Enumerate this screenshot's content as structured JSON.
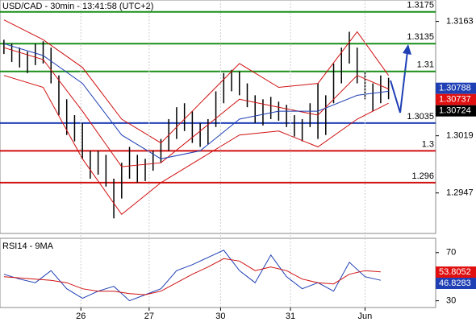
{
  "chart_data": [
    {
      "type": "hilo",
      "title": "USD/CAD - 30min - 13:41:58 (UTC+2)",
      "x": [
        0,
        1,
        2,
        3,
        4,
        5,
        6,
        7,
        8,
        9,
        10,
        11,
        12,
        13,
        14,
        15,
        16,
        17,
        18,
        19,
        20,
        21,
        22,
        23,
        24,
        25,
        26,
        27,
        28,
        29,
        30,
        31,
        32,
        33,
        34,
        35,
        36,
        37,
        38,
        39,
        40,
        41,
        42,
        43,
        44,
        45,
        46,
        47,
        48,
        49
      ],
      "high": [
        1.314,
        1.3135,
        1.313,
        1.3125,
        1.3135,
        1.3138,
        1.313,
        1.3095,
        1.3065,
        1.3045,
        1.3035,
        1.3,
        1.3,
        1.2995,
        1.2965,
        1.2985,
        1.3005,
        1.2995,
        1.299,
        1.3,
        1.3015,
        1.304,
        1.3055,
        1.306,
        1.305,
        1.3035,
        1.304,
        1.3075,
        1.3098,
        1.3102,
        1.31,
        1.3085,
        1.307,
        1.3065,
        1.3068,
        1.3062,
        1.3058,
        1.3045,
        1.304,
        1.306,
        1.3085,
        1.307,
        1.311,
        1.313,
        1.315,
        1.313,
        1.31,
        1.3085,
        1.3095,
        1.3092
      ],
      "low": [
        1.3122,
        1.3112,
        1.3105,
        1.3098,
        1.3108,
        1.311,
        1.3085,
        1.3045,
        1.302,
        1.3012,
        1.299,
        1.2965,
        1.297,
        1.2955,
        1.2915,
        1.294,
        1.2965,
        1.296,
        1.2962,
        1.2975,
        1.2985,
        1.3,
        1.3015,
        1.3025,
        1.301,
        1.3005,
        1.3008,
        1.303,
        1.306,
        1.3075,
        1.307,
        1.3055,
        1.3035,
        1.3032,
        1.304,
        1.3038,
        1.303,
        1.3018,
        1.3012,
        1.303,
        1.3015,
        1.302,
        1.306,
        1.3085,
        1.311,
        1.3085,
        1.3065,
        1.305,
        1.306,
        1.3065
      ],
      "color": "#000000",
      "series": [
        {
          "color": "#d01010",
          "x": [
            0,
            5,
            10,
            15,
            20,
            25,
            30,
            35,
            40,
            45,
            49
          ],
          "values": [
            1.3165,
            1.314,
            1.3105,
            1.304,
            1.301,
            1.306,
            1.311,
            1.308,
            1.3085,
            1.315,
            1.3095
          ]
        },
        {
          "color": "#d01010",
          "x": [
            0,
            5,
            10,
            15,
            20,
            25,
            30,
            35,
            40,
            45,
            49
          ],
          "values": [
            1.3095,
            1.308,
            1.299,
            1.292,
            1.296,
            1.299,
            1.302,
            1.3025,
            1.3005,
            1.304,
            1.306
          ]
        },
        {
          "color": "#d01010",
          "x": [
            0,
            5,
            10,
            15,
            20,
            25,
            30,
            35,
            40,
            45,
            49
          ],
          "values": [
            1.313,
            1.3115,
            1.305,
            1.298,
            1.2985,
            1.3025,
            1.3065,
            1.3055,
            1.3045,
            1.3095,
            1.3078
          ]
        },
        {
          "color": "#1f3fb5",
          "x": [
            0,
            5,
            10,
            15,
            20,
            25,
            30,
            35,
            40,
            45,
            49
          ],
          "values": [
            1.3135,
            1.312,
            1.3085,
            1.302,
            1.299,
            1.3,
            1.304,
            1.305,
            1.305,
            1.307,
            1.3075
          ]
        }
      ],
      "levels": [
        {
          "value": 1.3175,
          "color": "#1a8f1a"
        },
        {
          "value": 1.3135,
          "color": "#1a8f1a"
        },
        {
          "value": 1.31,
          "color": "#1a8f1a"
        },
        {
          "value": 1.3035,
          "color": "#1f3fb5"
        },
        {
          "value": 1.3,
          "color": "#d01010"
        },
        {
          "value": 1.296,
          "color": "#d01010"
        }
      ],
      "price_labels": [
        {
          "value": 1.30788,
          "color": "#1f3fb5"
        },
        {
          "value": 1.30737,
          "color": "#e01010"
        },
        {
          "value": 1.30724,
          "color": "#000000"
        }
      ],
      "xlim": [
        -0.5,
        55
      ],
      "ylim": [
        1.2896,
        1.319
      ],
      "yticks": [
        1.3163,
        1.3019,
        1.2947
      ]
    },
    {
      "type": "line",
      "title": "RSI14 - 9MA",
      "series": [
        {
          "color": "#1f3fb5",
          "x": [
            0,
            2,
            4,
            6,
            8,
            10,
            12,
            14,
            16,
            18,
            20,
            22,
            24,
            26,
            28,
            30,
            32,
            34,
            36,
            38,
            40,
            42,
            44,
            46,
            48
          ],
          "values": [
            52,
            48,
            45,
            55,
            40,
            32,
            38,
            42,
            30,
            35,
            40,
            55,
            60,
            66,
            72,
            55,
            45,
            68,
            50,
            40,
            45,
            38,
            62,
            50,
            47
          ]
        },
        {
          "color": "#d01010",
          "x": [
            0,
            2,
            4,
            6,
            8,
            10,
            12,
            14,
            16,
            18,
            20,
            22,
            24,
            26,
            28,
            30,
            32,
            34,
            36,
            38,
            40,
            42,
            44,
            46,
            48
          ],
          "values": [
            50,
            49,
            48,
            47,
            45,
            40,
            38,
            38,
            36,
            35,
            38,
            45,
            52,
            58,
            65,
            63,
            55,
            58,
            55,
            48,
            45,
            44,
            52,
            55,
            54
          ]
        }
      ],
      "price_labels": [
        {
          "value": 53.8052,
          "color": "#e01010"
        },
        {
          "value": 46.8283,
          "color": "#1f3fb5"
        }
      ],
      "xlim": [
        -0.5,
        55
      ],
      "ylim": [
        24.4,
        81.9
      ],
      "yticks": [
        70,
        30
      ],
      "xticks": [
        {
          "value": 9.8,
          "label": "26"
        },
        {
          "value": 18.5,
          "label": "27"
        },
        {
          "value": 27.6,
          "label": "30"
        },
        {
          "value": 36.5,
          "label": "31"
        },
        {
          "value": 46,
          "label": "Jun"
        }
      ],
      "grid": true
    }
  ]
}
